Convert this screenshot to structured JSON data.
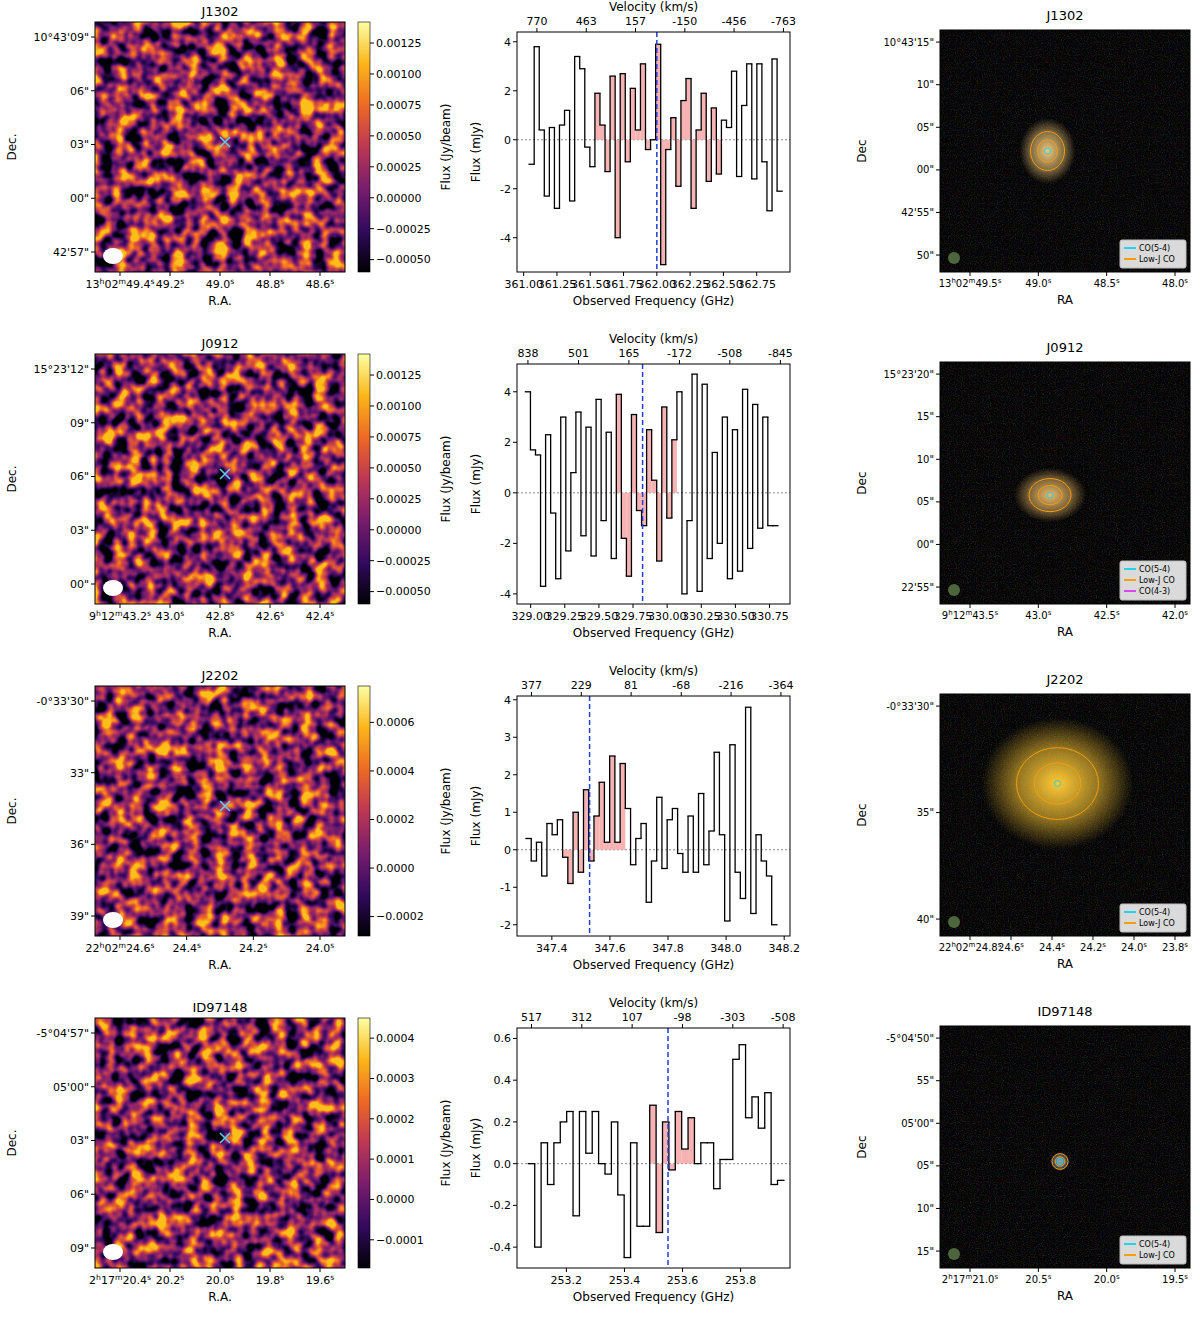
{
  "chart_data": [
    {
      "type": "image",
      "title": "J1302",
      "x_label": "R.A.",
      "y_label": "Dec.",
      "x_tick_labels": [
        "13h02m49.4s",
        "49.2s",
        "49.0s",
        "48.8s",
        "48.6s"
      ],
      "y_tick_labels": [
        "10°43'09\"",
        "06\"",
        "03\"",
        "00\"",
        "42'57\""
      ],
      "colorbar": {
        "label": "Flux (Jy/beam)",
        "lim": [
          -0.0006,
          0.00142
        ],
        "ticks": [
          {
            "value": -0.0005,
            "label": "−0.00050"
          },
          {
            "value": -0.00025,
            "label": "−0.00025"
          },
          {
            "value": 0,
            "label": "0.00000"
          },
          {
            "value": 0.00025,
            "label": "0.00025"
          },
          {
            "value": 0.0005,
            "label": "0.00050"
          },
          {
            "value": 0.00075,
            "label": "0.00075"
          },
          {
            "value": 0.001,
            "label": "0.00100"
          },
          {
            "value": 0.00125,
            "label": "0.00125"
          }
        ]
      }
    },
    {
      "type": "line",
      "line_style": "steps",
      "x_label": "Observed Frequency (GHz)",
      "y_label": "Flux (mJy)",
      "x2_label": "Velocity (km/s)",
      "x": [
        361.06,
        361.098,
        361.136,
        361.174,
        361.212,
        361.25,
        361.288,
        361.326,
        361.364,
        361.402,
        361.44,
        361.478,
        361.516,
        361.554,
        361.592,
        361.63,
        361.668,
        361.706,
        361.744,
        361.782,
        361.82,
        361.858,
        361.896,
        361.934,
        361.972,
        362.01,
        362.048,
        362.086,
        362.124,
        362.162,
        362.2,
        362.238,
        362.276,
        362.314,
        362.352,
        362.39,
        362.428,
        362.466,
        362.504,
        362.542,
        362.58,
        362.618,
        362.656,
        362.694,
        362.732,
        362.77,
        362.808,
        362.846,
        362.884,
        362.922
      ],
      "values": [
        -1.0,
        3.8,
        0.4,
        -2.3,
        0.5,
        -2.8,
        0.6,
        1.2,
        -2.5,
        3.4,
        2.9,
        -0.3,
        -1.1,
        1.9,
        0.6,
        -1.3,
        2.6,
        -4.0,
        2.7,
        -0.9,
        2.1,
        0.4,
        3.1,
        -0.4,
        0.0,
        3.9,
        -5.1,
        -0.4,
        0.9,
        -1.9,
        1.6,
        2.5,
        -2.8,
        0.4,
        1.9,
        -1.7,
        1.3,
        -1.4,
        0.8,
        0.5,
        2.8,
        -1.5,
        1.4,
        3.1,
        -1.6,
        3.1,
        -0.9,
        -2.9,
        3.3,
        -2.1
      ],
      "xlim": [
        360.95,
        363.0
      ],
      "xticks": [
        {
          "value": 361.0,
          "label": "361.00"
        },
        361.25,
        {
          "value": 361.5,
          "label": "361.50"
        },
        361.75,
        {
          "value": 362.0,
          "label": "362.00"
        },
        362.25,
        {
          "value": 362.5,
          "label": "362.50"
        },
        362.75
      ],
      "x2lim": [
        894,
        -804
      ],
      "x2ticks": [
        770,
        463,
        157,
        -150,
        -456,
        -763
      ],
      "ylim": [
        -5.4,
        4.4
      ],
      "yticks": [
        -4,
        -2,
        0,
        2,
        4
      ],
      "highlight_range": [
        361.55,
        362.47
      ],
      "vline": 362.0
    },
    {
      "type": "image",
      "title": "J1302",
      "x_label": "RA",
      "y_label": "Dec",
      "x_tick_labels": [
        "13h02m49.5s",
        "49.0s",
        "48.5s",
        "48.0s"
      ],
      "y_tick_labels": [
        "10°43'15\"",
        "10\"",
        "05\"",
        "00\"",
        "42'55\"",
        "50\""
      ],
      "legend": "lower right",
      "series": [
        {
          "name": "CO(5-4)",
          "color": "#22d3ee"
        },
        {
          "name": "Low-J CO",
          "color": "#f59e0b"
        }
      ]
    },
    {
      "type": "image",
      "title": "J0912",
      "x_label": "R.A.",
      "y_label": "Dec.",
      "x_tick_labels": [
        "9h12m43.2s",
        "43.0s",
        "42.8s",
        "42.6s",
        "42.4s"
      ],
      "y_tick_labels": [
        "15°23'12\"",
        "09\"",
        "06\"",
        "03\"",
        "00\""
      ],
      "colorbar": {
        "label": "Flux (Jy/beam)",
        "lim": [
          -0.0006,
          0.00142
        ],
        "ticks": [
          {
            "value": -0.0005,
            "label": "−0.00050"
          },
          {
            "value": -0.00025,
            "label": "−0.00025"
          },
          {
            "value": 0,
            "label": "0.00000"
          },
          {
            "value": 0.00025,
            "label": "0.00025"
          },
          {
            "value": 0.0005,
            "label": "0.00050"
          },
          {
            "value": 0.00075,
            "label": "0.00075"
          },
          {
            "value": 0.001,
            "label": "0.00100"
          },
          {
            "value": 0.00125,
            "label": "0.00125"
          }
        ]
      }
    },
    {
      "type": "line",
      "line_style": "steps",
      "x_label": "Observed Frequency (GHz)",
      "y_label": "Flux (mJy)",
      "x2_label": "Velocity (km/s)",
      "x": [
        328.98,
        329.017,
        329.054,
        329.091,
        329.128,
        329.165,
        329.202,
        329.239,
        329.276,
        329.313,
        329.35,
        329.387,
        329.424,
        329.461,
        329.498,
        329.535,
        329.572,
        329.609,
        329.646,
        329.683,
        329.72,
        329.757,
        329.794,
        329.831,
        329.868,
        329.905,
        329.942,
        329.979,
        330.016,
        330.053,
        330.09,
        330.127,
        330.164,
        330.201,
        330.238,
        330.275,
        330.312,
        330.349,
        330.386,
        330.423,
        330.46,
        330.497,
        330.534,
        330.571,
        330.608,
        330.645,
        330.682,
        330.719,
        330.756,
        330.793
      ],
      "values": [
        4.0,
        1.7,
        1.5,
        -3.7,
        2.3,
        -0.8,
        -3.4,
        3.0,
        -2.3,
        0.8,
        3.2,
        -1.7,
        2.6,
        -2.5,
        3.7,
        -1.1,
        2.4,
        -2.6,
        3.9,
        -1.8,
        -3.3,
        3.1,
        -0.7,
        -1.3,
        2.5,
        0.5,
        -2.7,
        3.4,
        -1.0,
        2.1,
        4.0,
        -4.0,
        -1.1,
        4.7,
        -3.9,
        4.3,
        -2.6,
        1.6,
        -2.0,
        3.0,
        -3.4,
        2.5,
        -3.1,
        4.1,
        -2.2,
        3.5,
        -1.4,
        3.0,
        -1.3,
        -1.3
      ],
      "xlim": [
        328.9,
        330.9
      ],
      "xticks": [
        {
          "value": 329.0,
          "label": "329.00"
        },
        329.25,
        {
          "value": 329.5,
          "label": "329.50"
        },
        329.75,
        {
          "value": 330.0,
          "label": "330.00"
        },
        330.25,
        {
          "value": 330.5,
          "label": "330.50"
        },
        330.75
      ],
      "x2lim": [
        911,
        -909
      ],
      "x2ticks": [
        838,
        501,
        165,
        -172,
        -508,
        -845
      ],
      "ylim": [
        -4.4,
        5.1
      ],
      "yticks": [
        -4,
        -2,
        0,
        2,
        4
      ],
      "highlight_range": [
        329.62,
        330.08
      ],
      "vline": 329.82
    },
    {
      "type": "image",
      "title": "J0912",
      "x_label": "RA",
      "y_label": "Dec",
      "x_tick_labels": [
        "9h12m43.5s",
        "43.0s",
        "42.5s",
        "42.0s"
      ],
      "y_tick_labels": [
        "15°23'20\"",
        "15\"",
        "10\"",
        "05\"",
        "00\"",
        "22'55\""
      ],
      "legend": "lower right",
      "series": [
        {
          "name": "CO(5-4)",
          "color": "#22d3ee"
        },
        {
          "name": "Low-J CO",
          "color": "#f59e0b"
        },
        {
          "name": "CO(4-3)",
          "color": "#d946ef"
        }
      ]
    },
    {
      "type": "image",
      "title": "J2202",
      "x_label": "R.A.",
      "y_label": "Dec.",
      "x_tick_labels": [
        "22h02m24.6s",
        "24.4s",
        "24.2s",
        "24.0s"
      ],
      "y_tick_labels": [
        "-0°33'30\"",
        "33\"",
        "36\"",
        "39\""
      ],
      "colorbar": {
        "label": "Flux (Jy/beam)",
        "lim": [
          -0.00028,
          0.00075
        ],
        "ticks": [
          {
            "value": -0.0002,
            "label": "−0.0002"
          },
          {
            "value": 0,
            "label": "0.0000"
          },
          {
            "value": 0.0002,
            "label": "0.0002"
          },
          {
            "value": 0.0004,
            "label": "0.0004"
          },
          {
            "value": 0.0006,
            "label": "0.0006"
          }
        ]
      }
    },
    {
      "type": "line",
      "line_style": "steps",
      "x_label": "Observed Frequency (GHz)",
      "y_label": "Flux (mJy)",
      "x2_label": "Velocity (km/s)",
      "x": [
        347.32,
        347.338,
        347.356,
        347.374,
        347.392,
        347.41,
        347.428,
        347.446,
        347.464,
        347.482,
        347.5,
        347.518,
        347.536,
        347.554,
        347.572,
        347.59,
        347.608,
        347.626,
        347.644,
        347.662,
        347.68,
        347.698,
        347.716,
        347.734,
        347.752,
        347.77,
        347.788,
        347.806,
        347.824,
        347.842,
        347.86,
        347.878,
        347.896,
        347.914,
        347.932,
        347.95,
        347.968,
        347.986,
        348.004,
        348.022,
        348.04,
        348.058,
        348.076,
        348.094,
        348.112,
        348.13,
        348.148,
        348.166
      ],
      "values": [
        0.3,
        -0.3,
        0.2,
        -0.7,
        0.7,
        0.4,
        0.8,
        -0.2,
        -0.9,
        1.0,
        -0.6,
        1.6,
        -0.3,
        0.9,
        1.8,
        0.2,
        2.5,
        0.2,
        2.3,
        1.1,
        -0.4,
        0.3,
        0.7,
        -1.4,
        -0.3,
        1.4,
        -0.5,
        0.8,
        1.1,
        -0.1,
        -0.6,
        0.9,
        -0.6,
        1.5,
        -0.4,
        0.5,
        2.6,
        0.4,
        -1.9,
        2.8,
        -0.6,
        -1.3,
        3.8,
        -1.7,
        0.4,
        -0.3,
        -0.7,
        -2.0
      ],
      "xlim": [
        347.28,
        348.22
      ],
      "xticks": [
        347.4,
        347.6,
        347.8,
        {
          "value": 348.0,
          "label": "348.0"
        },
        348.2
      ],
      "x2lim": [
        420,
        -391
      ],
      "x2ticks": [
        377,
        229,
        81,
        -68,
        -216,
        -364
      ],
      "ylim": [
        -2.3,
        4.1
      ],
      "yticks": [
        -2,
        -1,
        0,
        1,
        2,
        3,
        4
      ],
      "highlight_range": [
        347.44,
        347.65
      ],
      "vline": 347.53
    },
    {
      "type": "image",
      "title": "J2202",
      "x_label": "RA",
      "y_label": "Dec",
      "x_tick_labels": [
        "22h02m24.8s",
        "24.6s",
        "24.4s",
        "24.2s",
        "24.0s",
        "23.8s"
      ],
      "y_tick_labels": [
        "-0°33'30\"",
        "35\"",
        "40\""
      ],
      "legend": "lower right",
      "series": [
        {
          "name": "CO(5-4)",
          "color": "#22d3ee"
        },
        {
          "name": "Low-J CO",
          "color": "#f59e0b"
        }
      ]
    },
    {
      "type": "image",
      "title": "ID97148",
      "x_label": "R.A.",
      "y_label": "Dec.",
      "x_tick_labels": [
        "2h17m20.4s",
        "20.2s",
        "20.0s",
        "19.8s",
        "19.6s"
      ],
      "y_tick_labels": [
        "-5°04'57\"",
        "05'00\"",
        "03\"",
        "06\"",
        "09\""
      ],
      "colorbar": {
        "label": "Flux (Jy/beam)",
        "lim": [
          -0.00017,
          0.00045
        ],
        "ticks": [
          {
            "value": -0.0001,
            "label": "−0.0001"
          },
          {
            "value": 0,
            "label": "0.0000"
          },
          {
            "value": 0.0001,
            "label": "0.0001"
          },
          {
            "value": 0.0002,
            "label": "0.0002"
          },
          {
            "value": 0.0003,
            "label": "0.0003"
          },
          {
            "value": 0.0004,
            "label": "0.0004"
          }
        ]
      }
    },
    {
      "type": "line",
      "line_style": "steps",
      "x_label": "Observed Frequency (GHz)",
      "y_label": "Flux (mJy)",
      "x2_label": "Velocity (km/s)",
      "x": [
        253.08,
        253.102,
        253.124,
        253.146,
        253.168,
        253.19,
        253.212,
        253.234,
        253.256,
        253.278,
        253.3,
        253.322,
        253.344,
        253.366,
        253.388,
        253.41,
        253.432,
        253.454,
        253.476,
        253.498,
        253.52,
        253.542,
        253.564,
        253.586,
        253.608,
        253.63,
        253.652,
        253.674,
        253.696,
        253.718,
        253.74,
        253.762,
        253.784,
        253.806,
        253.828,
        253.85,
        253.872,
        253.894,
        253.916,
        253.938
      ],
      "values": [
        0.0,
        -0.4,
        0.1,
        -0.1,
        0.1,
        0.2,
        0.25,
        -0.25,
        0.25,
        0.05,
        0.25,
        0.0,
        -0.05,
        0.2,
        -0.15,
        -0.45,
        0.1,
        -0.3,
        -0.3,
        0.28,
        -0.33,
        0.2,
        -0.03,
        0.25,
        0.07,
        0.22,
        0.0,
        0.1,
        0.1,
        -0.12,
        0.02,
        0.02,
        0.5,
        0.57,
        0.22,
        0.32,
        0.17,
        0.34,
        -0.1,
        -0.08
      ],
      "xlim": [
        253.03,
        253.97
      ],
      "xticks": [
        253.2,
        253.4,
        253.6,
        253.8
      ],
      "x2lim": [
        576,
        -536
      ],
      "x2ticks": [
        517,
        312,
        107,
        -98,
        -303,
        -508
      ],
      "ylim": [
        -0.5,
        0.65
      ],
      "yticks": [
        -0.4,
        -0.2,
        {
          "value": 0,
          "label": "0.0"
        },
        0.2,
        0.4,
        0.6
      ],
      "highlight_range": [
        253.48,
        253.64
      ],
      "vline": 253.55
    },
    {
      "type": "image",
      "title": "ID97148",
      "x_label": "RA",
      "y_label": "Dec",
      "x_tick_labels": [
        "2h17m21.0s",
        "20.5s",
        "20.0s",
        "19.5s"
      ],
      "y_tick_labels": [
        "-5°04'50\"",
        "55\"",
        "05'00\"",
        "05\"",
        "10\"",
        "15\""
      ],
      "legend": "lower right",
      "series": [
        {
          "name": "CO(5-4)",
          "color": "#22d3ee"
        },
        {
          "name": "Low-J CO",
          "color": "#f59e0b"
        }
      ]
    }
  ]
}
